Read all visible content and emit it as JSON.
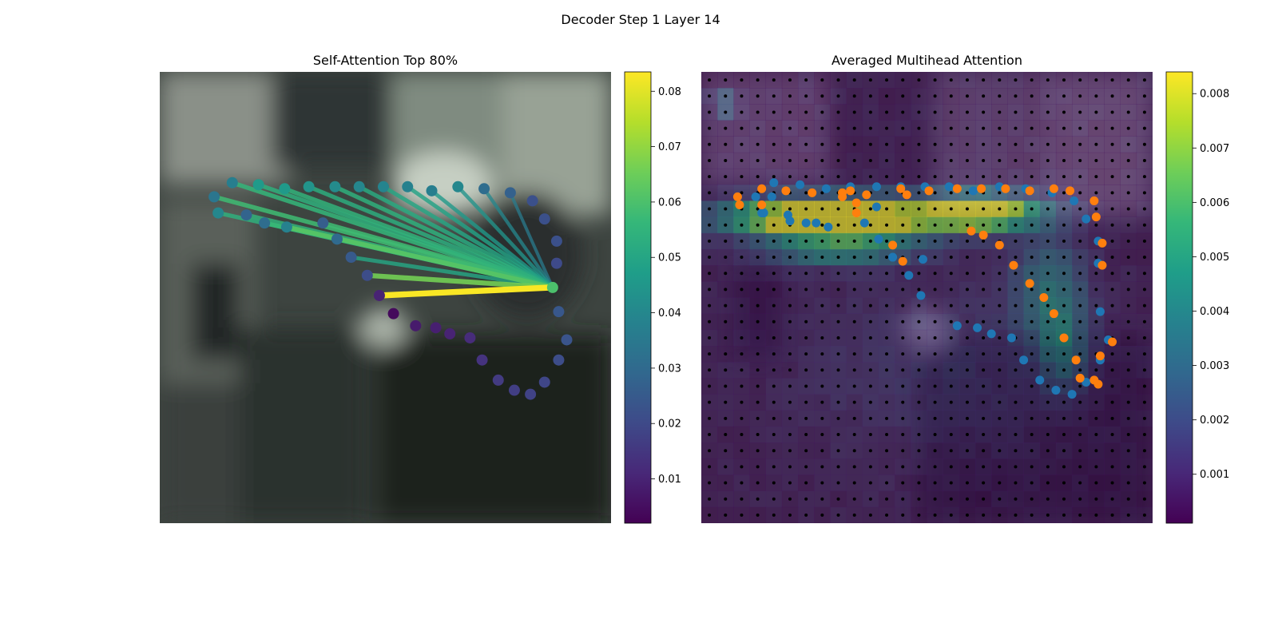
{
  "figure": {
    "suptitle": "Decoder Step 1 Layer 14"
  },
  "chart_data": [
    {
      "type": "scatter",
      "title": "Self-Attention Top 80%",
      "colormap": "viridis",
      "colorbar": {
        "min": 0.002,
        "max": 0.0835,
        "ticks": [
          "0.01",
          "0.02",
          "0.03",
          "0.04",
          "0.05",
          "0.06",
          "0.07",
          "0.08"
        ]
      },
      "axes_visible": false,
      "x_range": [
        0,
        224
      ],
      "y_range": [
        0,
        224
      ],
      "query_index": 31,
      "points": [
        {
          "x": 27,
          "y": 62,
          "v": 0.034
        },
        {
          "x": 36,
          "y": 55,
          "v": 0.037
        },
        {
          "x": 49,
          "y": 56,
          "v": 0.046
        },
        {
          "x": 62,
          "y": 58,
          "v": 0.046
        },
        {
          "x": 74,
          "y": 57,
          "v": 0.044
        },
        {
          "x": 87,
          "y": 57,
          "v": 0.041
        },
        {
          "x": 99,
          "y": 57,
          "v": 0.04
        },
        {
          "x": 111,
          "y": 57,
          "v": 0.039
        },
        {
          "x": 123,
          "y": 57,
          "v": 0.038
        },
        {
          "x": 135,
          "y": 59,
          "v": 0.037
        },
        {
          "x": 148,
          "y": 57,
          "v": 0.04
        },
        {
          "x": 161,
          "y": 58,
          "v": 0.031
        },
        {
          "x": 174,
          "y": 60,
          "v": 0.027
        },
        {
          "x": 185,
          "y": 64,
          "v": 0.022
        },
        {
          "x": 191,
          "y": 73,
          "v": 0.022
        },
        {
          "x": 197,
          "y": 84,
          "v": 0.022
        },
        {
          "x": 197,
          "y": 95,
          "v": 0.02
        },
        {
          "x": 198,
          "y": 119,
          "v": 0.024
        },
        {
          "x": 202,
          "y": 133,
          "v": 0.023
        },
        {
          "x": 198,
          "y": 143,
          "v": 0.021
        },
        {
          "x": 191,
          "y": 154,
          "v": 0.019
        },
        {
          "x": 184,
          "y": 160,
          "v": 0.018
        },
        {
          "x": 176,
          "y": 158,
          "v": 0.017
        },
        {
          "x": 168,
          "y": 153,
          "v": 0.016
        },
        {
          "x": 160,
          "y": 143,
          "v": 0.014
        },
        {
          "x": 154,
          "y": 132,
          "v": 0.012
        },
        {
          "x": 144,
          "y": 130,
          "v": 0.01
        },
        {
          "x": 137,
          "y": 127,
          "v": 0.009
        },
        {
          "x": 127,
          "y": 126,
          "v": 0.008
        },
        {
          "x": 116,
          "y": 120,
          "v": 0.004
        },
        {
          "x": 109,
          "y": 111,
          "v": 0.01
        },
        {
          "x": 195,
          "y": 107,
          "v": 0.06
        },
        {
          "x": 103,
          "y": 101,
          "v": 0.021
        },
        {
          "x": 95,
          "y": 92,
          "v": 0.025
        },
        {
          "x": 88,
          "y": 83,
          "v": 0.03
        },
        {
          "x": 81,
          "y": 75,
          "v": 0.026
        },
        {
          "x": 63,
          "y": 77,
          "v": 0.038
        },
        {
          "x": 52,
          "y": 75,
          "v": 0.031
        },
        {
          "x": 43,
          "y": 71,
          "v": 0.028
        },
        {
          "x": 29,
          "y": 70,
          "v": 0.04
        }
      ],
      "edges": [
        {
          "to": 0,
          "v": 0.058
        },
        {
          "to": 1,
          "v": 0.056
        },
        {
          "to": 2,
          "v": 0.054
        },
        {
          "to": 3,
          "v": 0.055
        },
        {
          "to": 4,
          "v": 0.053
        },
        {
          "to": 5,
          "v": 0.054
        },
        {
          "to": 6,
          "v": 0.052
        },
        {
          "to": 7,
          "v": 0.05
        },
        {
          "to": 8,
          "v": 0.049
        },
        {
          "to": 9,
          "v": 0.046
        },
        {
          "to": 10,
          "v": 0.044
        },
        {
          "to": 11,
          "v": 0.04
        },
        {
          "to": 12,
          "v": 0.036
        },
        {
          "to": 39,
          "v": 0.054
        },
        {
          "to": 38,
          "v": 0.055
        },
        {
          "to": 37,
          "v": 0.057
        },
        {
          "to": 36,
          "v": 0.062
        },
        {
          "to": 35,
          "v": 0.058
        },
        {
          "to": 34,
          "v": 0.052
        },
        {
          "to": 33,
          "v": 0.05
        },
        {
          "to": 32,
          "v": 0.066
        },
        {
          "to": 30,
          "v": 0.083
        }
      ]
    },
    {
      "type": "heatmap",
      "title": "Averaged Multihead Attention",
      "colormap": "viridis",
      "colorbar": {
        "min": 0.0001,
        "max": 0.0084,
        "ticks": [
          "0.001",
          "0.002",
          "0.003",
          "0.004",
          "0.005",
          "0.006",
          "0.007",
          "0.008"
        ]
      },
      "axes_visible": false,
      "grid": [
        28,
        28
      ],
      "x_range": [
        0,
        224
      ],
      "y_range": [
        0,
        224
      ],
      "hotspots": [
        {
          "cx": 5.5,
          "cy": 8.5,
          "sx": 3.5,
          "sy": 0.8,
          "a": 0.0072
        },
        {
          "cx": 9.0,
          "cy": 9.0,
          "sx": 3.5,
          "sy": 0.9,
          "a": 0.0066
        },
        {
          "cx": 17.0,
          "cy": 8.2,
          "sx": 2.2,
          "sy": 0.7,
          "a": 0.008
        },
        {
          "cx": 13.5,
          "cy": 8.2,
          "sx": 4.5,
          "sy": 0.8,
          "a": 0.0035
        },
        {
          "cx": 8.0,
          "cy": 10.8,
          "sx": 3.0,
          "sy": 0.6,
          "a": 0.003
        },
        {
          "cx": 21.0,
          "cy": 13.0,
          "sx": 1.5,
          "sy": 2.5,
          "a": 0.003
        },
        {
          "cx": 22.0,
          "cy": 16.5,
          "sx": 1.0,
          "sy": 2.0,
          "a": 0.0025
        },
        {
          "cx": 1.0,
          "cy": 1.5,
          "sx": 0.6,
          "sy": 0.5,
          "a": 0.0028
        },
        {
          "cx": 14.0,
          "cy": 18.0,
          "sx": 6.0,
          "sy": 4.0,
          "a": 0.0008
        }
      ],
      "base_value": 0.0004,
      "series": [
        {
          "color": "#1f77b4",
          "points": [
            [
              30,
              70
            ],
            [
              27,
              62
            ],
            [
              36,
              55
            ],
            [
              49,
              56
            ],
            [
              62,
              58
            ],
            [
              74,
              57
            ],
            [
              87,
              57
            ],
            [
              99,
              57
            ],
            [
              111,
              57
            ],
            [
              123,
              57
            ],
            [
              135,
              59
            ],
            [
              148,
              57
            ],
            [
              161,
              58
            ],
            [
              174,
              60
            ],
            [
              185,
              64
            ],
            [
              191,
              73
            ],
            [
              197,
              84
            ],
            [
              197,
              95
            ],
            [
              198,
              119
            ],
            [
              202,
              133
            ],
            [
              198,
              143
            ],
            [
              191,
              154
            ],
            [
              184,
              160
            ],
            [
              176,
              158
            ],
            [
              168,
              153
            ],
            [
              160,
              143
            ],
            [
              154,
              132
            ],
            [
              144,
              130
            ],
            [
              137,
              127
            ],
            [
              127,
              126
            ],
            [
              109,
              111
            ],
            [
              103,
              101
            ],
            [
              95,
              92
            ],
            [
              88,
              83
            ],
            [
              81,
              75
            ],
            [
              63,
              77
            ],
            [
              52,
              75
            ],
            [
              43,
              71
            ],
            [
              31,
              70
            ],
            [
              35,
              62
            ],
            [
              44,
              74
            ],
            [
              57,
              75
            ],
            [
              87,
              67
            ],
            [
              110,
              93
            ]
          ]
        },
        {
          "color": "#ff7f0e",
          "points": [
            [
              18,
              62
            ],
            [
              19,
              66
            ],
            [
              30,
              58
            ],
            [
              30,
              66
            ],
            [
              42,
              59
            ],
            [
              55,
              60
            ],
            [
              70,
              60
            ],
            [
              74,
              59
            ],
            [
              82,
              61
            ],
            [
              99,
              58
            ],
            [
              102,
              61
            ],
            [
              113,
              59
            ],
            [
              127,
              58
            ],
            [
              139,
              58
            ],
            [
              151,
              58
            ],
            [
              163,
              59
            ],
            [
              175,
              58
            ],
            [
              183,
              59
            ],
            [
              195,
              64
            ],
            [
              196,
              72
            ],
            [
              199,
              85
            ],
            [
              199,
              96
            ],
            [
              204,
              134
            ],
            [
              198,
              141
            ],
            [
              197,
              155
            ],
            [
              195,
              153
            ],
            [
              188,
              152
            ],
            [
              186,
              143
            ],
            [
              180,
              132
            ],
            [
              175,
              120
            ],
            [
              170,
              112
            ],
            [
              163,
              105
            ],
            [
              155,
              96
            ],
            [
              148,
              86
            ],
            [
              140,
              81
            ],
            [
              134,
              79
            ],
            [
              100,
              94
            ],
            [
              95,
              86
            ],
            [
              77,
              70
            ],
            [
              77,
              65
            ],
            [
              70,
              62
            ]
          ]
        }
      ]
    }
  ]
}
